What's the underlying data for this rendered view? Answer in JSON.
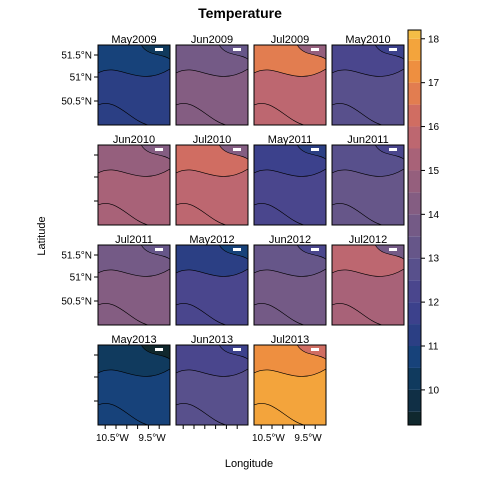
{
  "chart_data": {
    "type": "heatmap",
    "title": "Temperature",
    "xlabel": "Longitude",
    "ylabel": "Latitude",
    "x_tick_labels": [
      "10.5°W",
      "9.5°W"
    ],
    "y_tick_labels": [
      "51.5°N",
      "51°N",
      "50.5°N"
    ],
    "colorbar": {
      "range": [
        9.2,
        18.2
      ],
      "ticks": [
        10,
        11,
        12,
        13,
        14,
        15,
        16,
        17,
        18
      ],
      "levels": [
        9.2,
        9.5,
        10,
        10.5,
        11,
        11.5,
        12,
        12.5,
        13,
        13.5,
        14,
        14.5,
        15,
        15.5,
        16,
        16.5,
        17,
        17.5,
        18,
        18.2
      ],
      "colors": [
        "#10282e",
        "#102f45",
        "#103a5e",
        "#17427a",
        "#2b3f84",
        "#3c418c",
        "#4a468d",
        "#58508c",
        "#665689",
        "#745a86",
        "#845d82",
        "#955f7d",
        "#a86278",
        "#bd6770",
        "#d06d62",
        "#e27d50",
        "#ee8f40",
        "#f3a43c",
        "#f4bd46",
        "#f2d95c"
      ]
    },
    "panels": [
      {
        "label": "May2009",
        "mean": 11.2
      },
      {
        "label": "Jun2009",
        "mean": 14.4
      },
      {
        "label": "Jul2009",
        "mean": 15.9
      },
      {
        "label": "May2010",
        "mean": 12.7
      },
      {
        "label": "Jun2010",
        "mean": 15.4
      },
      {
        "label": "Jul2010",
        "mean": 15.5
      },
      {
        "label": "May2011",
        "mean": 12.3
      },
      {
        "label": "Jun2011",
        "mean": 13.2
      },
      {
        "label": "Jul2011",
        "mean": 14.3
      },
      {
        "label": "May2012",
        "mean": 12.0
      },
      {
        "label": "Jun2012",
        "mean": 13.6
      },
      {
        "label": "Jul2012",
        "mean": 15.1
      },
      {
        "label": "May2013",
        "mean": 10.6
      },
      {
        "label": "Jun2013",
        "mean": 12.8
      },
      {
        "label": "Jul2013",
        "mean": 17.6
      }
    ]
  }
}
